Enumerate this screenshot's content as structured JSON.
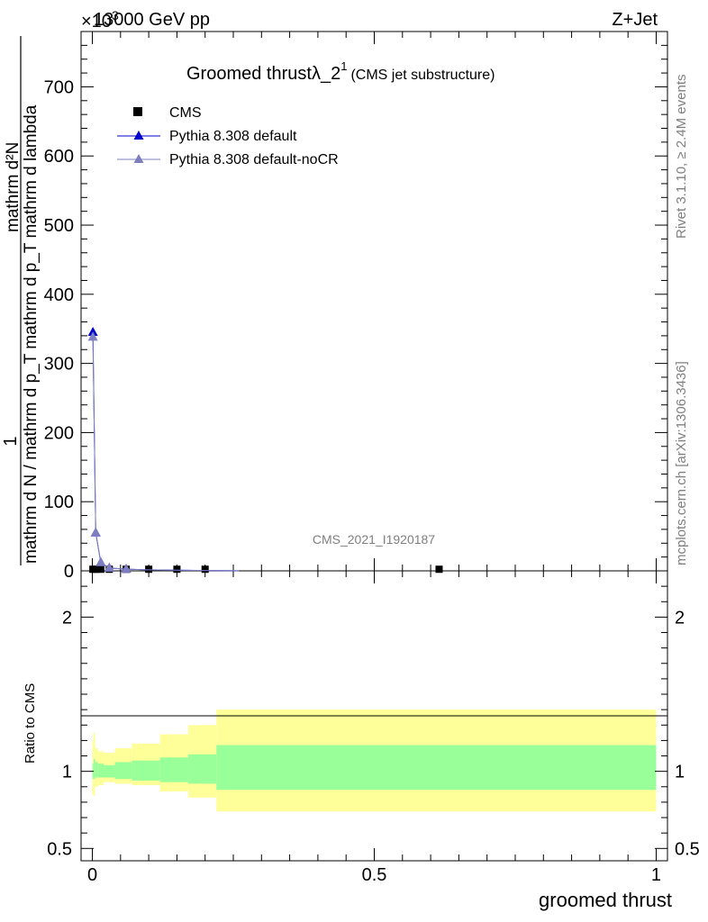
{
  "header": {
    "left": "13000 GeV pp",
    "right": "Z+Jet",
    "exponent_base": "×10",
    "exponent_power": "3"
  },
  "plot": {
    "title_main": "Groomed thrustλ_2",
    "title_sup": "1",
    "title_sub": "(CMS jet substructure)",
    "analysis_id": "CMS_2021_I1920187",
    "side_text_top": "Rivet 3.1.10, ≥ 2.4M events",
    "side_text_bottom": "mcplots.cern.ch [arXiv:1306.3436]",
    "ylabel_numerator": "1",
    "ylabel_denominator": "mathrm d N / mathrm d p_T mathrm d p_T mathrm d lambda",
    "ylabel_top": "mathrm d²N",
    "xlabel": "groomed thrust",
    "ratio_ylabel": "Ratio to CMS"
  },
  "legend": [
    {
      "label": "CMS",
      "marker": "square",
      "color": "#000000"
    },
    {
      "label": "Pythia 8.308 default",
      "marker": "triangle",
      "color": "#0000cc"
    },
    {
      "label": "Pythia 8.308 default-noCR",
      "marker": "triangle",
      "color": "#7f7fbf"
    }
  ],
  "chart_data": {
    "type": "line",
    "xlim": [
      -0.02,
      1.02
    ],
    "ylim": [
      0,
      780
    ],
    "y_multiplier": "×10^3",
    "xticks": [
      0,
      0.5,
      1
    ],
    "xtick_labels": [
      "0",
      "0.5",
      "1"
    ],
    "yticks": [
      0,
      100,
      200,
      300,
      400,
      500,
      600,
      700
    ],
    "ytick_labels": [
      "0",
      "100",
      "200",
      "300",
      "400",
      "500",
      "600",
      "700"
    ],
    "series": [
      {
        "name": "CMS",
        "color": "#000000",
        "marker": "square",
        "x": [
          0.001,
          0.006,
          0.015,
          0.03,
          0.06,
          0.1,
          0.15,
          0.2,
          0.615
        ],
        "y": [
          1,
          1,
          1,
          1,
          1,
          1,
          1,
          1,
          1
        ]
      },
      {
        "name": "Pythia 8.308 default",
        "color": "#0000cc",
        "marker": "triangle",
        "x": [
          0.001,
          0.006,
          0.015,
          0.03,
          0.06,
          0.1,
          0.15,
          0.2,
          0.26
        ],
        "y": [
          345,
          55,
          12,
          4,
          2.5,
          1.5,
          1,
          0.5,
          0.2
        ]
      },
      {
        "name": "Pythia 8.308 default-noCR",
        "color": "#7f7fbf",
        "marker": "triangle",
        "x": [
          0.001,
          0.006,
          0.015,
          0.03,
          0.06,
          0.1,
          0.15,
          0.2,
          0.26
        ],
        "y": [
          338,
          55,
          12,
          4,
          2.5,
          1.5,
          1,
          0.5,
          0.2
        ]
      }
    ],
    "ratio": {
      "ylim": [
        0.42,
        2.3
      ],
      "yticks": [
        0.5,
        1,
        2
      ],
      "ytick_labels": [
        "0.5",
        "1",
        "2"
      ],
      "band_edges": [
        0,
        0.002,
        0.005,
        0.01,
        0.02,
        0.04,
        0.07,
        0.12,
        0.17,
        0.22,
        1.0
      ],
      "inner_band": [
        [
          0.95,
          1.05
        ],
        [
          0.95,
          1.08
        ],
        [
          0.96,
          1.06
        ],
        [
          0.96,
          1.05
        ],
        [
          0.96,
          1.04
        ],
        [
          0.95,
          1.06
        ],
        [
          0.94,
          1.07
        ],
        [
          0.93,
          1.09
        ],
        [
          0.92,
          1.11
        ],
        [
          0.88,
          1.17
        ]
      ],
      "outer_band": [
        [
          0.85,
          1.2
        ],
        [
          0.84,
          1.25
        ],
        [
          0.9,
          1.15
        ],
        [
          0.91,
          1.13
        ],
        [
          0.93,
          1.12
        ],
        [
          0.92,
          1.15
        ],
        [
          0.91,
          1.18
        ],
        [
          0.87,
          1.24
        ],
        [
          0.83,
          1.3
        ],
        [
          0.74,
          1.4
        ]
      ]
    }
  }
}
